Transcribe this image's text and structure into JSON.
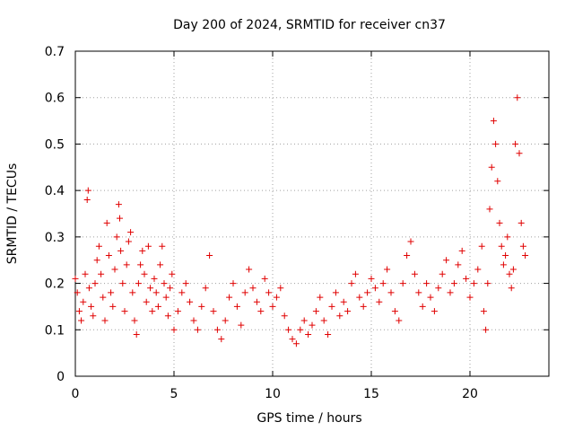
{
  "chart_data": {
    "type": "scatter",
    "title": "Day 200 of 2024, SRMTID for receiver cn37",
    "xlabel": "GPS time / hours",
    "ylabel": "SRMTID / TECUs",
    "xlim": [
      0,
      24
    ],
    "ylim": [
      0,
      0.7
    ],
    "xticks": [
      "0",
      "5",
      "10",
      "15",
      "20"
    ],
    "yticks": [
      "0",
      "0.1",
      "0.2",
      "0.3",
      "0.4",
      "0.5",
      "0.6",
      "0.7"
    ],
    "grid": true,
    "marker": "+",
    "marker_color": "#e00000",
    "series": [
      {
        "name": "SRMTID",
        "x": [
          0.0,
          0.1,
          0.2,
          0.3,
          0.4,
          0.5,
          0.6,
          0.65,
          0.7,
          0.8,
          0.9,
          1.0,
          1.1,
          1.2,
          1.3,
          1.4,
          1.5,
          1.6,
          1.7,
          1.8,
          1.9,
          2.0,
          2.1,
          2.2,
          2.25,
          2.3,
          2.4,
          2.5,
          2.6,
          2.7,
          2.8,
          2.9,
          3.0,
          3.1,
          3.2,
          3.3,
          3.4,
          3.5,
          3.6,
          3.7,
          3.8,
          3.9,
          4.0,
          4.1,
          4.2,
          4.3,
          4.4,
          4.5,
          4.6,
          4.7,
          4.8,
          4.9,
          5.0,
          5.2,
          5.4,
          5.6,
          5.8,
          6.0,
          6.2,
          6.4,
          6.6,
          6.8,
          7.0,
          7.2,
          7.4,
          7.6,
          7.8,
          8.0,
          8.2,
          8.4,
          8.6,
          8.8,
          9.0,
          9.2,
          9.4,
          9.6,
          9.8,
          10.0,
          10.2,
          10.4,
          10.6,
          10.8,
          11.0,
          11.2,
          11.4,
          11.6,
          11.8,
          12.0,
          12.2,
          12.4,
          12.6,
          12.8,
          13.0,
          13.2,
          13.4,
          13.6,
          13.8,
          14.0,
          14.2,
          14.4,
          14.6,
          14.8,
          15.0,
          15.2,
          15.4,
          15.6,
          15.8,
          16.0,
          16.2,
          16.4,
          16.6,
          16.8,
          17.0,
          17.2,
          17.4,
          17.6,
          17.8,
          18.0,
          18.2,
          18.4,
          18.6,
          18.8,
          19.0,
          19.2,
          19.4,
          19.6,
          19.8,
          20.0,
          20.2,
          20.4,
          20.6,
          20.7,
          20.8,
          20.9,
          21.0,
          21.1,
          21.2,
          21.3,
          21.4,
          21.5,
          21.6,
          21.7,
          21.8,
          21.9,
          22.0,
          22.1,
          22.2,
          22.3,
          22.4,
          22.5,
          22.6,
          22.7,
          22.8
        ],
        "y": [
          0.21,
          0.18,
          0.14,
          0.12,
          0.16,
          0.22,
          0.38,
          0.4,
          0.19,
          0.15,
          0.13,
          0.2,
          0.25,
          0.28,
          0.22,
          0.17,
          0.12,
          0.33,
          0.26,
          0.18,
          0.15,
          0.23,
          0.3,
          0.37,
          0.34,
          0.27,
          0.2,
          0.14,
          0.24,
          0.29,
          0.31,
          0.18,
          0.12,
          0.09,
          0.2,
          0.24,
          0.27,
          0.22,
          0.16,
          0.28,
          0.19,
          0.14,
          0.21,
          0.18,
          0.15,
          0.24,
          0.28,
          0.2,
          0.17,
          0.13,
          0.19,
          0.22,
          0.1,
          0.14,
          0.18,
          0.2,
          0.16,
          0.12,
          0.1,
          0.15,
          0.19,
          0.26,
          0.14,
          0.1,
          0.08,
          0.12,
          0.17,
          0.2,
          0.15,
          0.11,
          0.18,
          0.23,
          0.19,
          0.16,
          0.14,
          0.21,
          0.18,
          0.15,
          0.17,
          0.19,
          0.13,
          0.1,
          0.08,
          0.07,
          0.1,
          0.12,
          0.09,
          0.11,
          0.14,
          0.17,
          0.12,
          0.09,
          0.15,
          0.18,
          0.13,
          0.16,
          0.14,
          0.2,
          0.22,
          0.17,
          0.15,
          0.18,
          0.21,
          0.19,
          0.16,
          0.2,
          0.23,
          0.18,
          0.14,
          0.12,
          0.2,
          0.26,
          0.29,
          0.22,
          0.18,
          0.15,
          0.2,
          0.17,
          0.14,
          0.19,
          0.22,
          0.25,
          0.18,
          0.2,
          0.24,
          0.27,
          0.21,
          0.17,
          0.2,
          0.23,
          0.28,
          0.14,
          0.1,
          0.2,
          0.36,
          0.45,
          0.55,
          0.5,
          0.42,
          0.33,
          0.28,
          0.24,
          0.26,
          0.3,
          0.22,
          0.19,
          0.23,
          0.5,
          0.6,
          0.48,
          0.33,
          0.28,
          0.26
        ]
      }
    ]
  }
}
